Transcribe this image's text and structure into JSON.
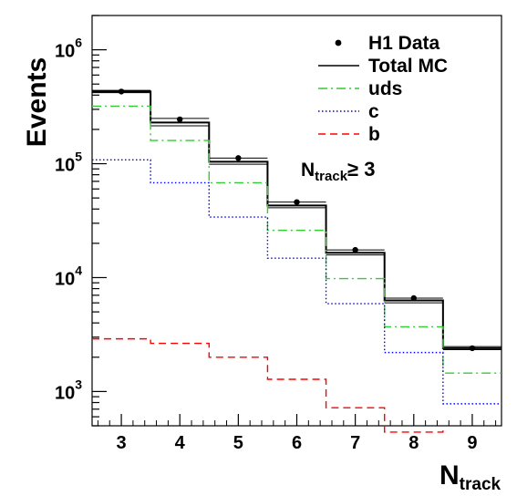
{
  "chart_data": {
    "type": "line",
    "xlabel": {
      "main": "N",
      "sub": "track"
    },
    "ylabel": "Events",
    "yscale": "log",
    "xlim": [
      2.5,
      9.5
    ],
    "ylim": [
      500,
      2000000
    ],
    "x_ticks": [
      3,
      4,
      5,
      6,
      7,
      8,
      9
    ],
    "y_ticks": [
      {
        "base": "10",
        "exp": "3",
        "value": 1000
      },
      {
        "base": "10",
        "exp": "4",
        "value": 10000
      },
      {
        "base": "10",
        "exp": "5",
        "value": 100000
      },
      {
        "base": "10",
        "exp": "6",
        "value": 1000000
      }
    ],
    "annotation": {
      "main": "N",
      "sub": "track",
      "rest": "≥ 3"
    },
    "series": [
      {
        "name": "H1 Data",
        "style": "points",
        "color": "#000000",
        "x": [
          3,
          4,
          5,
          6,
          7,
          8,
          9
        ],
        "y": [
          430000,
          245000,
          112000,
          46000,
          17500,
          6600,
          2400
        ]
      },
      {
        "name": "Total MC",
        "style": "step-solid",
        "color": "#000000",
        "x": [
          3,
          4,
          5,
          6,
          7,
          8,
          9
        ],
        "y": [
          430000,
          230000,
          104000,
          43000,
          16500,
          6300,
          2400
        ],
        "band": [
          [
            440000,
            420000
          ],
          [
            250000,
            215000
          ],
          [
            112000,
            99000
          ],
          [
            46000,
            41000
          ],
          [
            17500,
            15800
          ],
          [
            6600,
            6000
          ],
          [
            2480,
            2330
          ]
        ]
      },
      {
        "name": "uds",
        "style": "step-dashdot",
        "color": "#33cc33",
        "x": [
          3,
          4,
          5,
          6,
          7,
          8,
          9
        ],
        "y": [
          320000,
          160000,
          68000,
          26000,
          9800,
          3700,
          1450
        ]
      },
      {
        "name": "c",
        "style": "step-dotted",
        "color": "#0000ff",
        "x": [
          3,
          4,
          5,
          6,
          7,
          8,
          9
        ],
        "y": [
          108000,
          68000,
          34000,
          14800,
          5900,
          2200,
          780
        ]
      },
      {
        "name": "b",
        "style": "step-dashed",
        "color": "#ff0000",
        "x": [
          3,
          4,
          5,
          6,
          7,
          8,
          9
        ],
        "y": [
          2900,
          2650,
          2000,
          1280,
          720,
          440,
          null
        ]
      }
    ]
  }
}
